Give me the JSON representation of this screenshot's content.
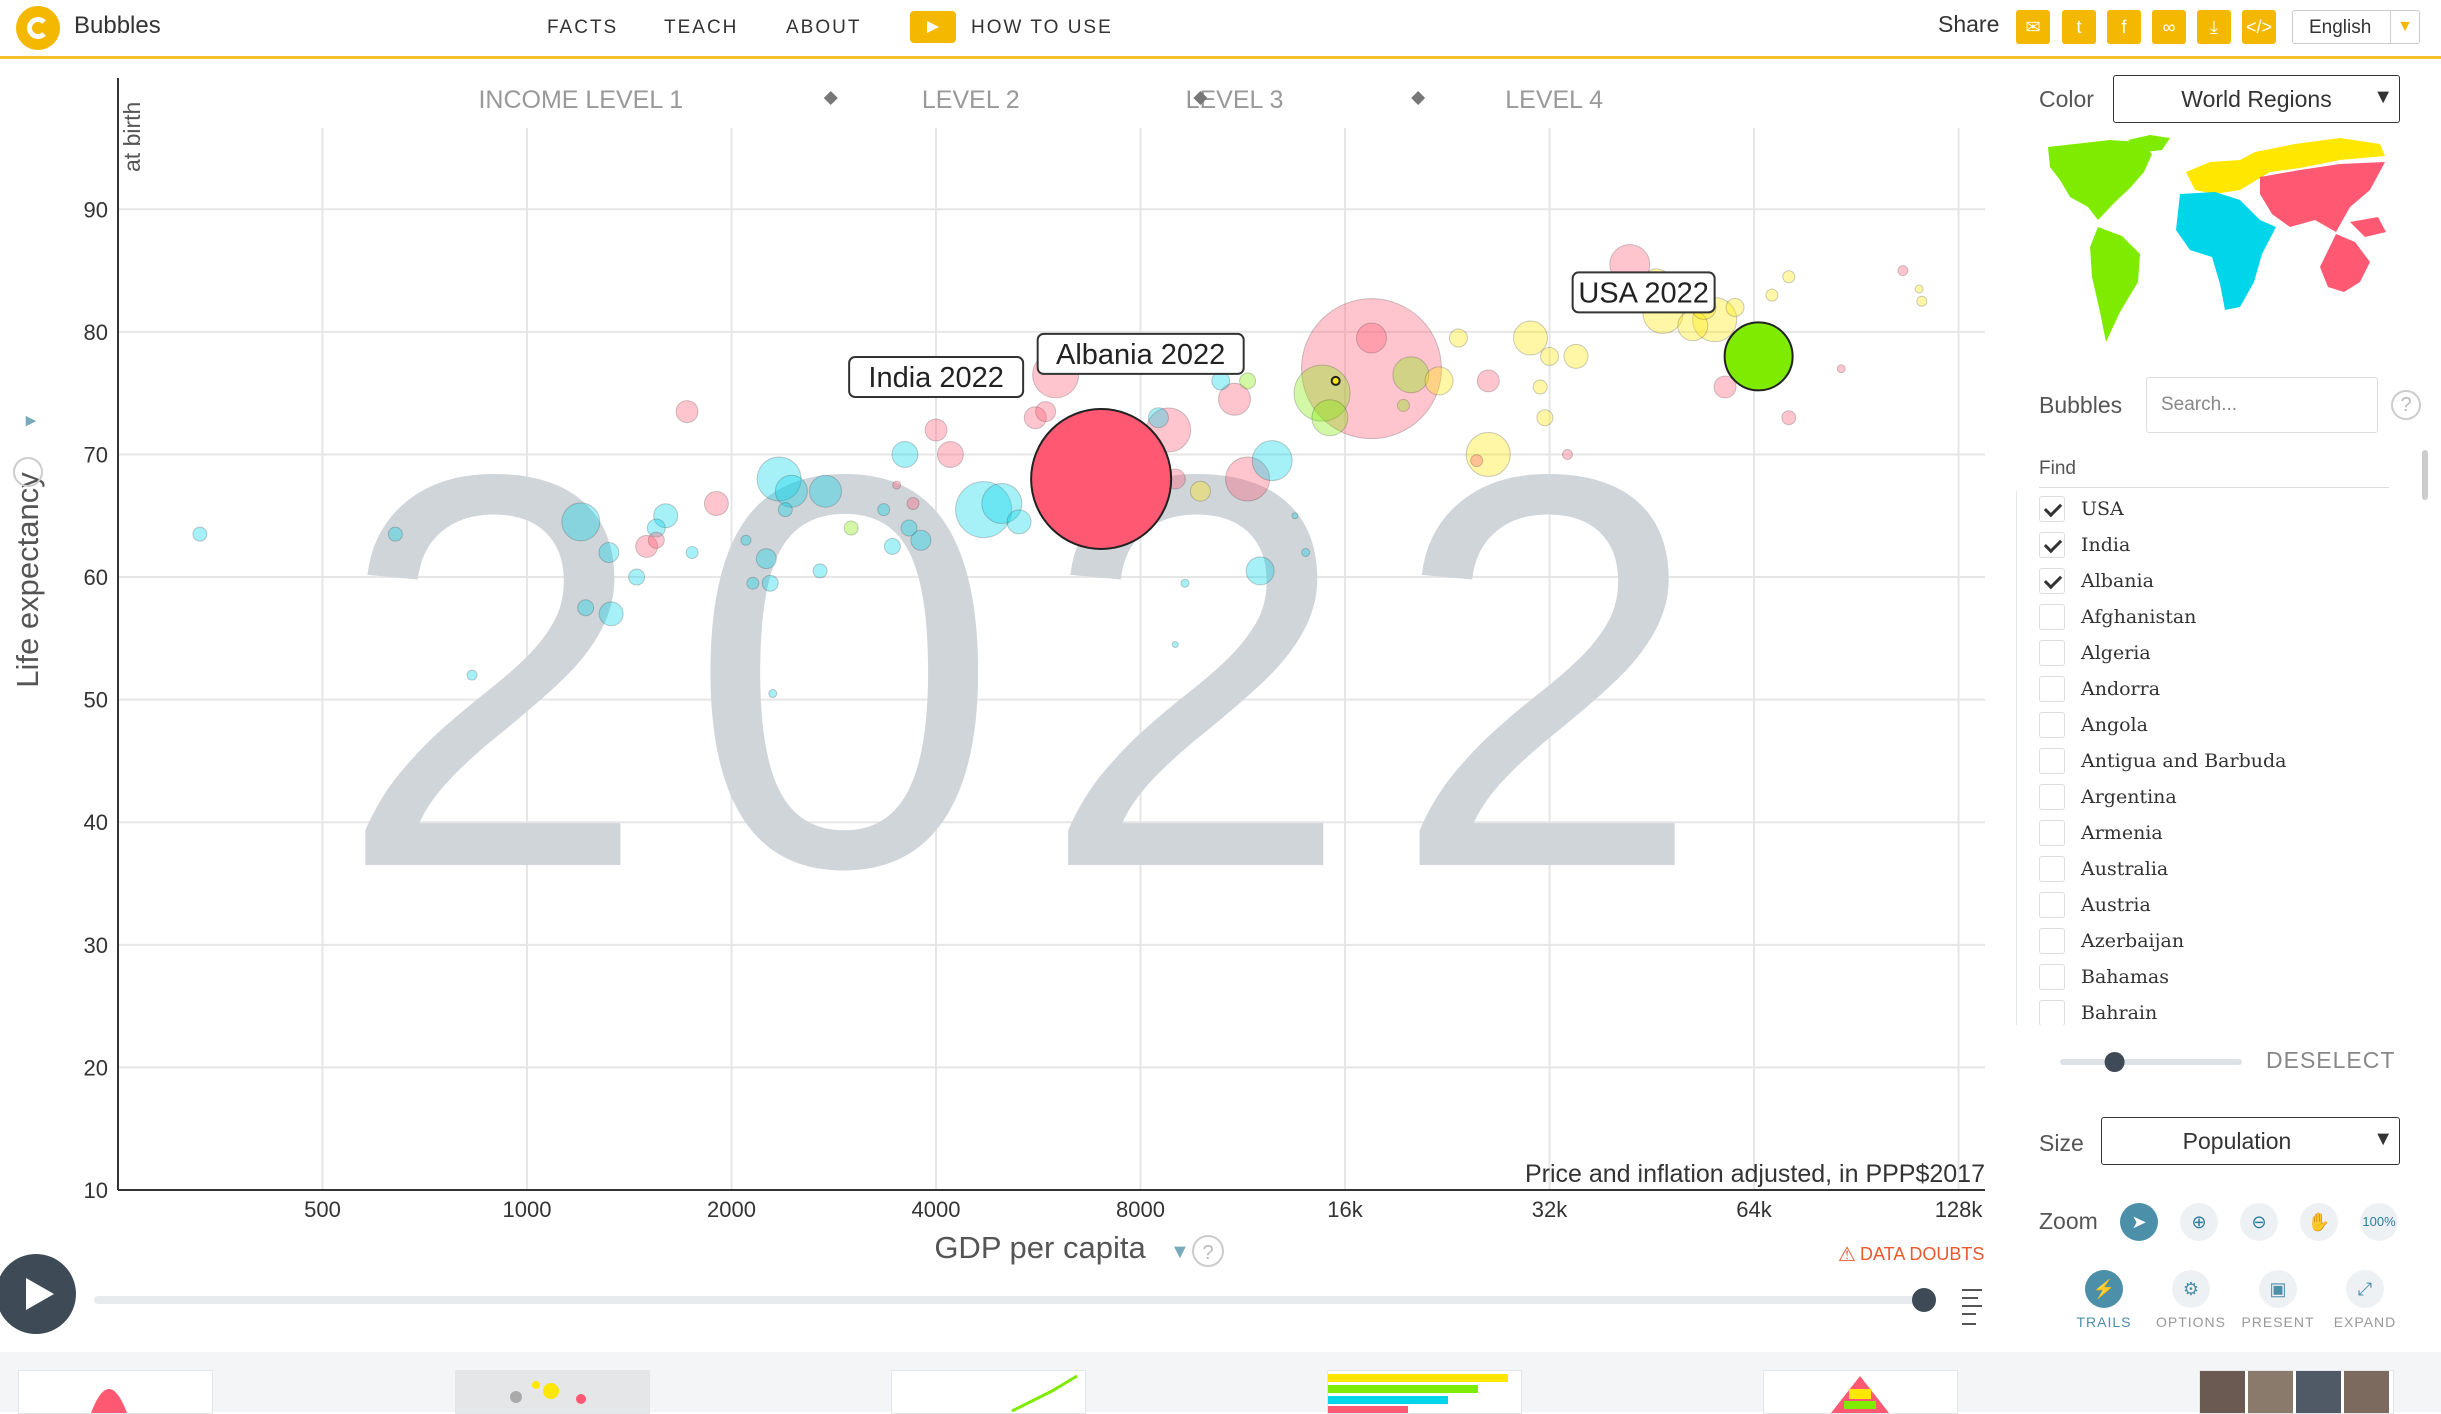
{
  "header": {
    "app_title": "Bubbles",
    "nav": [
      "FACTS",
      "TEACH",
      "ABOUT"
    ],
    "how_to_use": "HOW TO USE",
    "share_label": "Share",
    "share_icons": [
      "email-icon",
      "twitter-icon",
      "facebook-icon",
      "link-icon",
      "download-icon",
      "embed-icon"
    ],
    "language": "English"
  },
  "chart_data": {
    "type": "scatter",
    "year": "2022",
    "xlabel": "GDP per capita",
    "ylabel": "Life expectancy",
    "y_sublabel": "at birth",
    "x_scale": "log2",
    "xlim": [
      250,
      140000
    ],
    "ylim": [
      10,
      95
    ],
    "x_ticks": [
      "500",
      "1000",
      "2000",
      "4000",
      "8000",
      "16k",
      "32k",
      "64k",
      "128k"
    ],
    "y_ticks": [
      10,
      20,
      30,
      40,
      50,
      60,
      70,
      80,
      90
    ],
    "income_levels": [
      "INCOME LEVEL 1",
      "LEVEL 2",
      "LEVEL 3",
      "LEVEL 4"
    ],
    "unit_note": "Price and inflation adjusted, in PPP$2017",
    "data_doubts": "DATA DOUBTS",
    "grid": true,
    "colors": {
      "asia": "#ff5872",
      "africa": "#00d5e9",
      "americas": "#7feb00",
      "europe": "#ffe700"
    },
    "selected": [
      {
        "label": "India 2022",
        "x": 7000,
        "y": 68,
        "region": "asia",
        "r": 70
      },
      {
        "label": "Albania 2022",
        "x": 15500,
        "y": 76,
        "region": "europe",
        "r": 4
      },
      {
        "label": "USA 2022",
        "x": 65000,
        "y": 78,
        "region": "americas",
        "r": 34
      }
    ],
    "points": [
      {
        "x": 330,
        "y": 63.5,
        "region": "africa",
        "r": 7
      },
      {
        "x": 640,
        "y": 63.5,
        "region": "africa",
        "r": 7
      },
      {
        "x": 830,
        "y": 52,
        "region": "africa",
        "r": 5
      },
      {
        "x": 1200,
        "y": 64.5,
        "region": "africa",
        "r": 19
      },
      {
        "x": 1220,
        "y": 57.5,
        "region": "africa",
        "r": 8
      },
      {
        "x": 1330,
        "y": 57,
        "region": "africa",
        "r": 12
      },
      {
        "x": 1320,
        "y": 62,
        "region": "africa",
        "r": 10
      },
      {
        "x": 1450,
        "y": 60,
        "region": "africa",
        "r": 8
      },
      {
        "x": 1550,
        "y": 64,
        "region": "africa",
        "r": 9
      },
      {
        "x": 1600,
        "y": 65,
        "region": "africa",
        "r": 12
      },
      {
        "x": 1500,
        "y": 62.5,
        "region": "asia",
        "r": 11
      },
      {
        "x": 1550,
        "y": 63,
        "region": "asia",
        "r": 8
      },
      {
        "x": 1750,
        "y": 62,
        "region": "africa",
        "r": 6
      },
      {
        "x": 1720,
        "y": 73.5,
        "region": "asia",
        "r": 11
      },
      {
        "x": 1900,
        "y": 66,
        "region": "asia",
        "r": 12
      },
      {
        "x": 2100,
        "y": 63,
        "region": "africa",
        "r": 5
      },
      {
        "x": 2150,
        "y": 59.5,
        "region": "africa",
        "r": 6
      },
      {
        "x": 2250,
        "y": 61.5,
        "region": "africa",
        "r": 10
      },
      {
        "x": 2280,
        "y": 59.5,
        "region": "africa",
        "r": 8
      },
      {
        "x": 2350,
        "y": 68,
        "region": "africa",
        "r": 22
      },
      {
        "x": 2450,
        "y": 67,
        "region": "africa",
        "r": 16
      },
      {
        "x": 2750,
        "y": 67,
        "region": "africa",
        "r": 16
      },
      {
        "x": 2700,
        "y": 60.5,
        "region": "africa",
        "r": 7
      },
      {
        "x": 2300,
        "y": 50.5,
        "region": "africa",
        "r": 4
      },
      {
        "x": 2400,
        "y": 65.5,
        "region": "africa",
        "r": 7
      },
      {
        "x": 3000,
        "y": 64,
        "region": "americas",
        "r": 7
      },
      {
        "x": 3350,
        "y": 65.5,
        "region": "africa",
        "r": 6
      },
      {
        "x": 3450,
        "y": 62.5,
        "region": "africa",
        "r": 8
      },
      {
        "x": 3650,
        "y": 64,
        "region": "africa",
        "r": 8
      },
      {
        "x": 3700,
        "y": 66,
        "region": "asia",
        "r": 6
      },
      {
        "x": 3800,
        "y": 63,
        "region": "africa",
        "r": 10
      },
      {
        "x": 3600,
        "y": 70,
        "region": "africa",
        "r": 13
      },
      {
        "x": 4000,
        "y": 72,
        "region": "asia",
        "r": 11
      },
      {
        "x": 4200,
        "y": 70,
        "region": "asia",
        "r": 13
      },
      {
        "x": 3500,
        "y": 67.5,
        "region": "asia",
        "r": 4
      },
      {
        "x": 4700,
        "y": 65.5,
        "region": "africa",
        "r": 28
      },
      {
        "x": 5000,
        "y": 66,
        "region": "africa",
        "r": 20
      },
      {
        "x": 5300,
        "y": 64.5,
        "region": "africa",
        "r": 12
      },
      {
        "x": 5600,
        "y": 73,
        "region": "asia",
        "r": 11
      },
      {
        "x": 6000,
        "y": 76.5,
        "region": "asia",
        "r": 23
      },
      {
        "x": 5800,
        "y": 73.5,
        "region": "asia",
        "r": 10
      },
      {
        "x": 8800,
        "y": 72,
        "region": "asia",
        "r": 22
      },
      {
        "x": 8500,
        "y": 73,
        "region": "africa",
        "r": 10
      },
      {
        "x": 9000,
        "y": 68,
        "region": "asia",
        "r": 10
      },
      {
        "x": 9300,
        "y": 59.5,
        "region": "africa",
        "r": 4
      },
      {
        "x": 11000,
        "y": 74.5,
        "region": "asia",
        "r": 16
      },
      {
        "x": 10500,
        "y": 76,
        "region": "africa",
        "r": 9
      },
      {
        "x": 11500,
        "y": 76,
        "region": "americas",
        "r": 8
      },
      {
        "x": 9800,
        "y": 67,
        "region": "europe",
        "r": 10
      },
      {
        "x": 11500,
        "y": 68,
        "region": "asia",
        "r": 22
      },
      {
        "x": 12500,
        "y": 69.5,
        "region": "africa",
        "r": 20
      },
      {
        "x": 12000,
        "y": 60.5,
        "region": "africa",
        "r": 14
      },
      {
        "x": 9000,
        "y": 54.5,
        "region": "africa",
        "r": 3
      },
      {
        "x": 13500,
        "y": 65,
        "region": "africa",
        "r": 3
      },
      {
        "x": 14000,
        "y": 62,
        "region": "africa",
        "r": 4
      },
      {
        "x": 14800,
        "y": 75,
        "region": "americas",
        "r": 28
      },
      {
        "x": 15200,
        "y": 73,
        "region": "americas",
        "r": 18
      },
      {
        "x": 17500,
        "y": 77,
        "region": "asia",
        "r": 70
      },
      {
        "x": 17500,
        "y": 79.5,
        "region": "asia",
        "r": 15
      },
      {
        "x": 20000,
        "y": 76.5,
        "region": "americas",
        "r": 18
      },
      {
        "x": 22000,
        "y": 76,
        "region": "europe",
        "r": 14
      },
      {
        "x": 23500,
        "y": 79.5,
        "region": "europe",
        "r": 9
      },
      {
        "x": 19500,
        "y": 74,
        "region": "americas",
        "r": 6
      },
      {
        "x": 26000,
        "y": 70,
        "region": "europe",
        "r": 22
      },
      {
        "x": 25000,
        "y": 69.5,
        "region": "asia",
        "r": 6
      },
      {
        "x": 26000,
        "y": 76,
        "region": "asia",
        "r": 11
      },
      {
        "x": 30000,
        "y": 79.5,
        "region": "europe",
        "r": 17
      },
      {
        "x": 32000,
        "y": 78,
        "region": "europe",
        "r": 9
      },
      {
        "x": 35000,
        "y": 78,
        "region": "europe",
        "r": 12
      },
      {
        "x": 31500,
        "y": 73,
        "region": "europe",
        "r": 8
      },
      {
        "x": 31000,
        "y": 75.5,
        "region": "europe",
        "r": 7
      },
      {
        "x": 34000,
        "y": 70,
        "region": "asia",
        "r": 5
      },
      {
        "x": 42000,
        "y": 85.5,
        "region": "asia",
        "r": 20
      },
      {
        "x": 46000,
        "y": 84,
        "region": "europe",
        "r": 14
      },
      {
        "x": 47000,
        "y": 81.5,
        "region": "europe",
        "r": 20
      },
      {
        "x": 52000,
        "y": 80.5,
        "region": "europe",
        "r": 15
      },
      {
        "x": 54000,
        "y": 82,
        "region": "europe",
        "r": 12
      },
      {
        "x": 56000,
        "y": 81,
        "region": "europe",
        "r": 22
      },
      {
        "x": 60000,
        "y": 82,
        "region": "europe",
        "r": 9
      },
      {
        "x": 58000,
        "y": 75.5,
        "region": "asia",
        "r": 11
      },
      {
        "x": 68000,
        "y": 83,
        "region": "europe",
        "r": 6
      },
      {
        "x": 72000,
        "y": 84.5,
        "region": "europe",
        "r": 6
      },
      {
        "x": 72000,
        "y": 73,
        "region": "asia",
        "r": 7
      },
      {
        "x": 86000,
        "y": 77,
        "region": "asia",
        "r": 4
      },
      {
        "x": 106000,
        "y": 85,
        "region": "asia",
        "r": 5
      },
      {
        "x": 112000,
        "y": 83.5,
        "region": "europe",
        "r": 4
      },
      {
        "x": 113000,
        "y": 82.5,
        "region": "europe",
        "r": 5
      }
    ]
  },
  "panel": {
    "color_label": "Color",
    "color_value": "World Regions",
    "bubbles_label": "Bubbles",
    "search_placeholder": "Search...",
    "find_label": "Find",
    "countries": [
      {
        "name": "USA",
        "checked": true
      },
      {
        "name": "India",
        "checked": true
      },
      {
        "name": "Albania",
        "checked": true
      },
      {
        "name": "Afghanistan",
        "checked": false
      },
      {
        "name": "Algeria",
        "checked": false
      },
      {
        "name": "Andorra",
        "checked": false
      },
      {
        "name": "Angola",
        "checked": false
      },
      {
        "name": "Antigua and Barbuda",
        "checked": false
      },
      {
        "name": "Argentina",
        "checked": false
      },
      {
        "name": "Armenia",
        "checked": false
      },
      {
        "name": "Australia",
        "checked": false
      },
      {
        "name": "Austria",
        "checked": false
      },
      {
        "name": "Azerbaijan",
        "checked": false
      },
      {
        "name": "Bahamas",
        "checked": false
      },
      {
        "name": "Bahrain",
        "checked": false
      }
    ],
    "opacity_level": 0.3,
    "deselect_label": "DESELECT",
    "size_label": "Size",
    "size_value": "Population",
    "zoom_label": "Zoom",
    "zoom_buttons": [
      {
        "icon": "pointer-icon",
        "glyph": "➤",
        "active": true
      },
      {
        "icon": "zoom-in-icon",
        "glyph": "⊕",
        "active": false
      },
      {
        "icon": "zoom-out-icon",
        "glyph": "⊖",
        "active": false
      },
      {
        "icon": "hand-icon",
        "glyph": "✋",
        "active": false
      },
      {
        "icon": "zoom-reset-icon",
        "glyph": "100%",
        "active": false
      }
    ],
    "tools": [
      {
        "label": "TRAILS",
        "icon": "trails-icon",
        "glyph": "⚡",
        "active": true
      },
      {
        "label": "OPTIONS",
        "icon": "gear-icon",
        "glyph": "⚙",
        "active": false
      },
      {
        "label": "PRESENT",
        "icon": "present-icon",
        "glyph": "▣",
        "active": false
      },
      {
        "label": "EXPAND",
        "icon": "expand-icon",
        "glyph": "⤢",
        "active": false
      }
    ]
  },
  "timeline": {
    "progress": 1.0
  }
}
